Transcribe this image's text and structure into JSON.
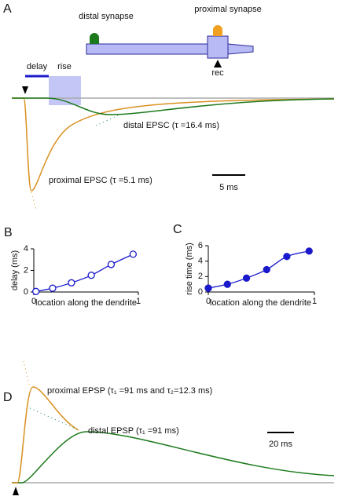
{
  "panel_a": {
    "label": "A",
    "distal_synapse": "distal synapse",
    "proximal_synapse": "proximal synapse",
    "rec": "rec",
    "delay": "delay",
    "rise": "rise",
    "distal_epsc": "distal EPSC (τ =16.4 ms)",
    "proximal_epsc": "proximal EPSC (τ =5.1 ms)",
    "scale": "5 ms"
  },
  "panel_d": {
    "label": "D",
    "proximal_epsp": "proximal EPSP (τ₁ =91 ms and τ₂=12.3 ms)",
    "distal_epsp": "distal EPSP (τ₁ =91 ms)",
    "scale": "20 ms"
  },
  "chart_data": [
    {
      "type": "line",
      "label": "B",
      "xlabel": "location along the dendrite",
      "ylabel": "delay (ms)",
      "color": "#1a1acc",
      "marker_fill": "#ffffff",
      "x": [
        0.02,
        0.18,
        0.36,
        0.55,
        0.74,
        0.95
      ],
      "values": [
        0.05,
        0.35,
        0.85,
        1.55,
        2.55,
        3.5
      ],
      "xlim": [
        0,
        1
      ],
      "xticks": [
        0,
        1
      ],
      "ylim": [
        0,
        4
      ],
      "yticks": [
        0,
        2,
        4
      ]
    },
    {
      "type": "line",
      "label": "C",
      "xlabel": "location along the dendrite",
      "ylabel": "rise time (ms)",
      "color": "#1a1acc",
      "marker_fill": "#1a1acc",
      "x": [
        0.0,
        0.18,
        0.36,
        0.55,
        0.74,
        0.95
      ],
      "values": [
        0.5,
        1.0,
        1.8,
        2.9,
        4.6,
        5.3
      ],
      "xlim": [
        0,
        1
      ],
      "xticks": [
        0,
        1
      ],
      "ylim": [
        0,
        6
      ],
      "yticks": [
        0,
        2,
        4,
        6
      ]
    }
  ]
}
